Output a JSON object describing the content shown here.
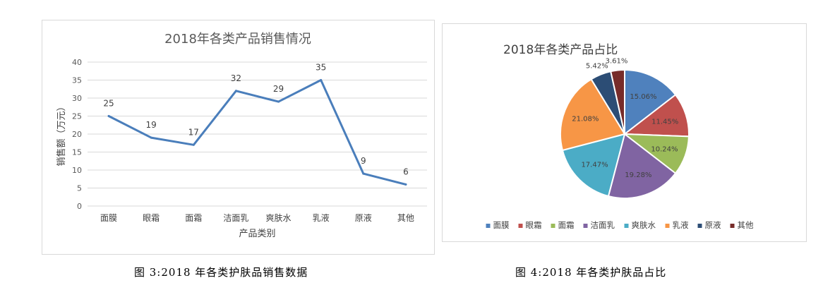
{
  "chart_data": [
    {
      "type": "line",
      "title": "2018年各类产品销售情况",
      "xlabel": "产品类别",
      "ylabel": "销售额（万元）",
      "categories": [
        "面膜",
        "眼霜",
        "面霜",
        "洁面乳",
        "爽肤水",
        "乳液",
        "原液",
        "其他"
      ],
      "series": [
        {
          "values": [
            25,
            19,
            17,
            32,
            29,
            35,
            9,
            6
          ],
          "color": "#4a7ebb"
        }
      ],
      "ylim": [
        0,
        40
      ],
      "yticks": [
        0,
        5,
        10,
        15,
        20,
        25,
        30,
        35,
        40
      ],
      "data_labels": [
        "25",
        "19",
        "17",
        "32",
        "29",
        "35",
        "9",
        "6"
      ],
      "grid": true
    },
    {
      "type": "pie",
      "title": "2018年各类产品占比",
      "categories": [
        "面膜",
        "眼霜",
        "面霜",
        "洁面乳",
        "爽肤水",
        "乳液",
        "原液",
        "其他"
      ],
      "values": [
        15.06,
        11.45,
        10.24,
        19.28,
        17.47,
        21.08,
        5.42,
        3.61
      ],
      "labels": [
        "15.06%",
        "11.45%",
        "10.24%",
        "19.28%",
        "17.47%",
        "21.08%",
        "5.42%",
        "3.61%"
      ],
      "colors": [
        "#4f81bd",
        "#c0504d",
        "#9bbb59",
        "#8064a2",
        "#4bacc6",
        "#f79646",
        "#2c4d75",
        "#772c2a"
      ],
      "legend": "bottom"
    }
  ],
  "captions": {
    "figure3": "图 3:2018 年各类护肤品销售数据",
    "figure4": "图 4:2018 年各类护肤品占比"
  }
}
